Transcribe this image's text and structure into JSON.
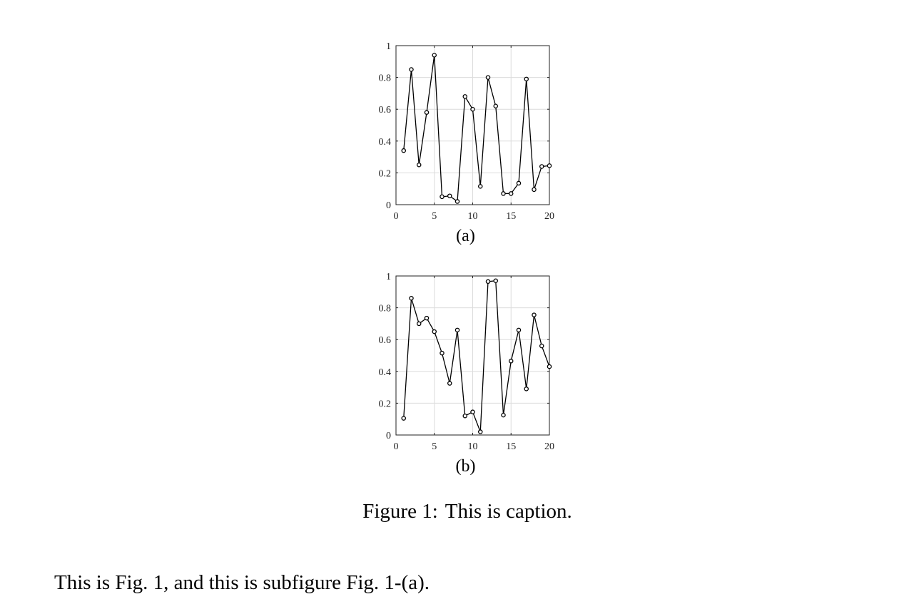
{
  "chart_data": [
    {
      "type": "line",
      "subfigure_label": "(a)",
      "x": [
        1,
        2,
        3,
        4,
        5,
        6,
        7,
        8,
        9,
        10,
        11,
        12,
        13,
        14,
        15,
        16,
        17,
        18,
        19,
        20
      ],
      "series": [
        {
          "values": [
            0.34,
            0.85,
            0.25,
            0.58,
            0.94,
            0.05,
            0.055,
            0.02,
            0.68,
            0.6,
            0.115,
            0.8,
            0.62,
            0.07,
            0.07,
            0.135,
            0.79,
            0.095,
            0.24,
            0.245
          ]
        }
      ],
      "xlim": [
        0,
        20
      ],
      "ylim": [
        0,
        1
      ],
      "xticks": [
        "0",
        "5",
        "10",
        "15",
        "20"
      ],
      "yticks": [
        "0",
        "0.2",
        "0.4",
        "0.6",
        "0.8",
        "1"
      ],
      "grid": true,
      "marker": "circle",
      "line_color": "#000000"
    },
    {
      "type": "line",
      "subfigure_label": "(b)",
      "x": [
        1,
        2,
        3,
        4,
        5,
        6,
        7,
        8,
        9,
        10,
        11,
        12,
        13,
        14,
        15,
        16,
        17,
        18,
        19,
        20
      ],
      "series": [
        {
          "values": [
            0.105,
            0.86,
            0.7,
            0.735,
            0.65,
            0.515,
            0.325,
            0.66,
            0.12,
            0.145,
            0.02,
            0.965,
            0.97,
            0.125,
            0.465,
            0.66,
            0.29,
            0.755,
            0.56,
            0.43
          ]
        }
      ],
      "xlim": [
        0,
        20
      ],
      "ylim": [
        0,
        1
      ],
      "xticks": [
        "0",
        "5",
        "10",
        "15",
        "20"
      ],
      "yticks": [
        "0",
        "0.2",
        "0.4",
        "0.6",
        "0.8",
        "1"
      ],
      "grid": true,
      "marker": "circle",
      "line_color": "#000000"
    }
  ],
  "caption": {
    "label": "Figure 1:",
    "text": "This is caption."
  },
  "body_text": "This is Fig. 1, and this is subfigure Fig. 1-(a)."
}
